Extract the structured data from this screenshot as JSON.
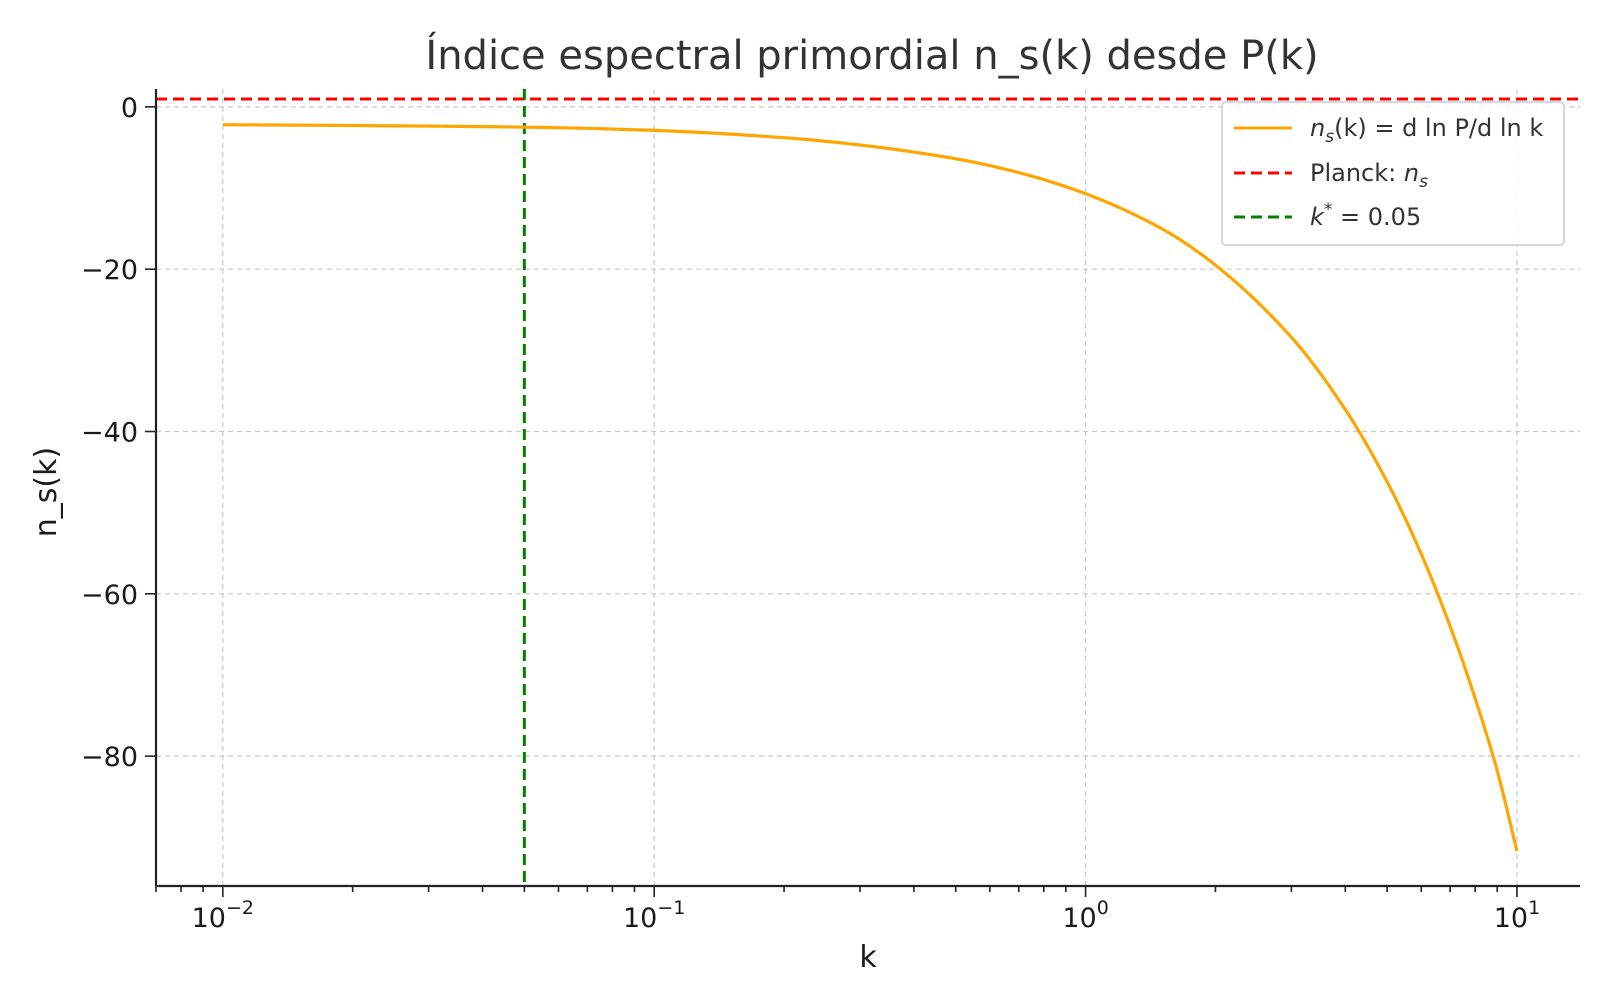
{
  "chart_data": {
    "type": "line",
    "title": "Índice espectral primordial n_s(k) desde P(k)",
    "xlabel": "k",
    "ylabel": "n_s(k)",
    "xscale": "log",
    "xlim": [
      0.007,
      14
    ],
    "ylim": [
      -96,
      2.2
    ],
    "grid": true,
    "legend_position": "top-right",
    "x_ticks": [
      {
        "value": 0.01,
        "base": "10",
        "exp": "−2"
      },
      {
        "value": 0.1,
        "base": "10",
        "exp": "−1"
      },
      {
        "value": 1,
        "base": "10",
        "exp": "0"
      },
      {
        "value": 10,
        "base": "10",
        "exp": "1"
      }
    ],
    "y_ticks": [
      {
        "value": 0,
        "label": "0"
      },
      {
        "value": -20,
        "label": "−20"
      },
      {
        "value": -40,
        "label": "−40"
      },
      {
        "value": -60,
        "label": "−60"
      },
      {
        "value": -80,
        "label": "−80"
      }
    ],
    "series": [
      {
        "name": "n_s(k) = d ln P / d ln k",
        "color": "#ffa500",
        "x": [
          0.01,
          0.02,
          0.05,
          0.1,
          0.2,
          0.3,
          0.5,
          0.7,
          1.0,
          1.5,
          2.0,
          3.0,
          4.0,
          5.0,
          6.0,
          7.0,
          8.0,
          9.0,
          10.0
        ],
        "y": [
          -2.2,
          -2.3,
          -2.5,
          -2.9,
          -3.8,
          -4.7,
          -6.4,
          -8.1,
          -10.7,
          -15.0,
          -19.5,
          -28.4,
          -37.3,
          -46.2,
          -55.1,
          -64.0,
          -72.9,
          -81.8,
          -91.7
        ]
      }
    ],
    "reference_lines": [
      {
        "name": "Planck: n_s",
        "orientation": "horizontal",
        "value": 0.965,
        "color": "#ff0000",
        "style": "dashed"
      },
      {
        "name": "k* = 0.05",
        "orientation": "vertical",
        "value": 0.05,
        "color": "#008000",
        "style": "dashed"
      }
    ],
    "legend": {
      "series_prefix": "n",
      "series_sub": "s",
      "series_rest": "(k) = d ln P/d ln k",
      "planck_prefix": "Planck: ",
      "planck_var": "n",
      "planck_sub": "s",
      "kstar_var": "k",
      "kstar_sup": "*",
      "kstar_rest": " = 0.05"
    }
  }
}
